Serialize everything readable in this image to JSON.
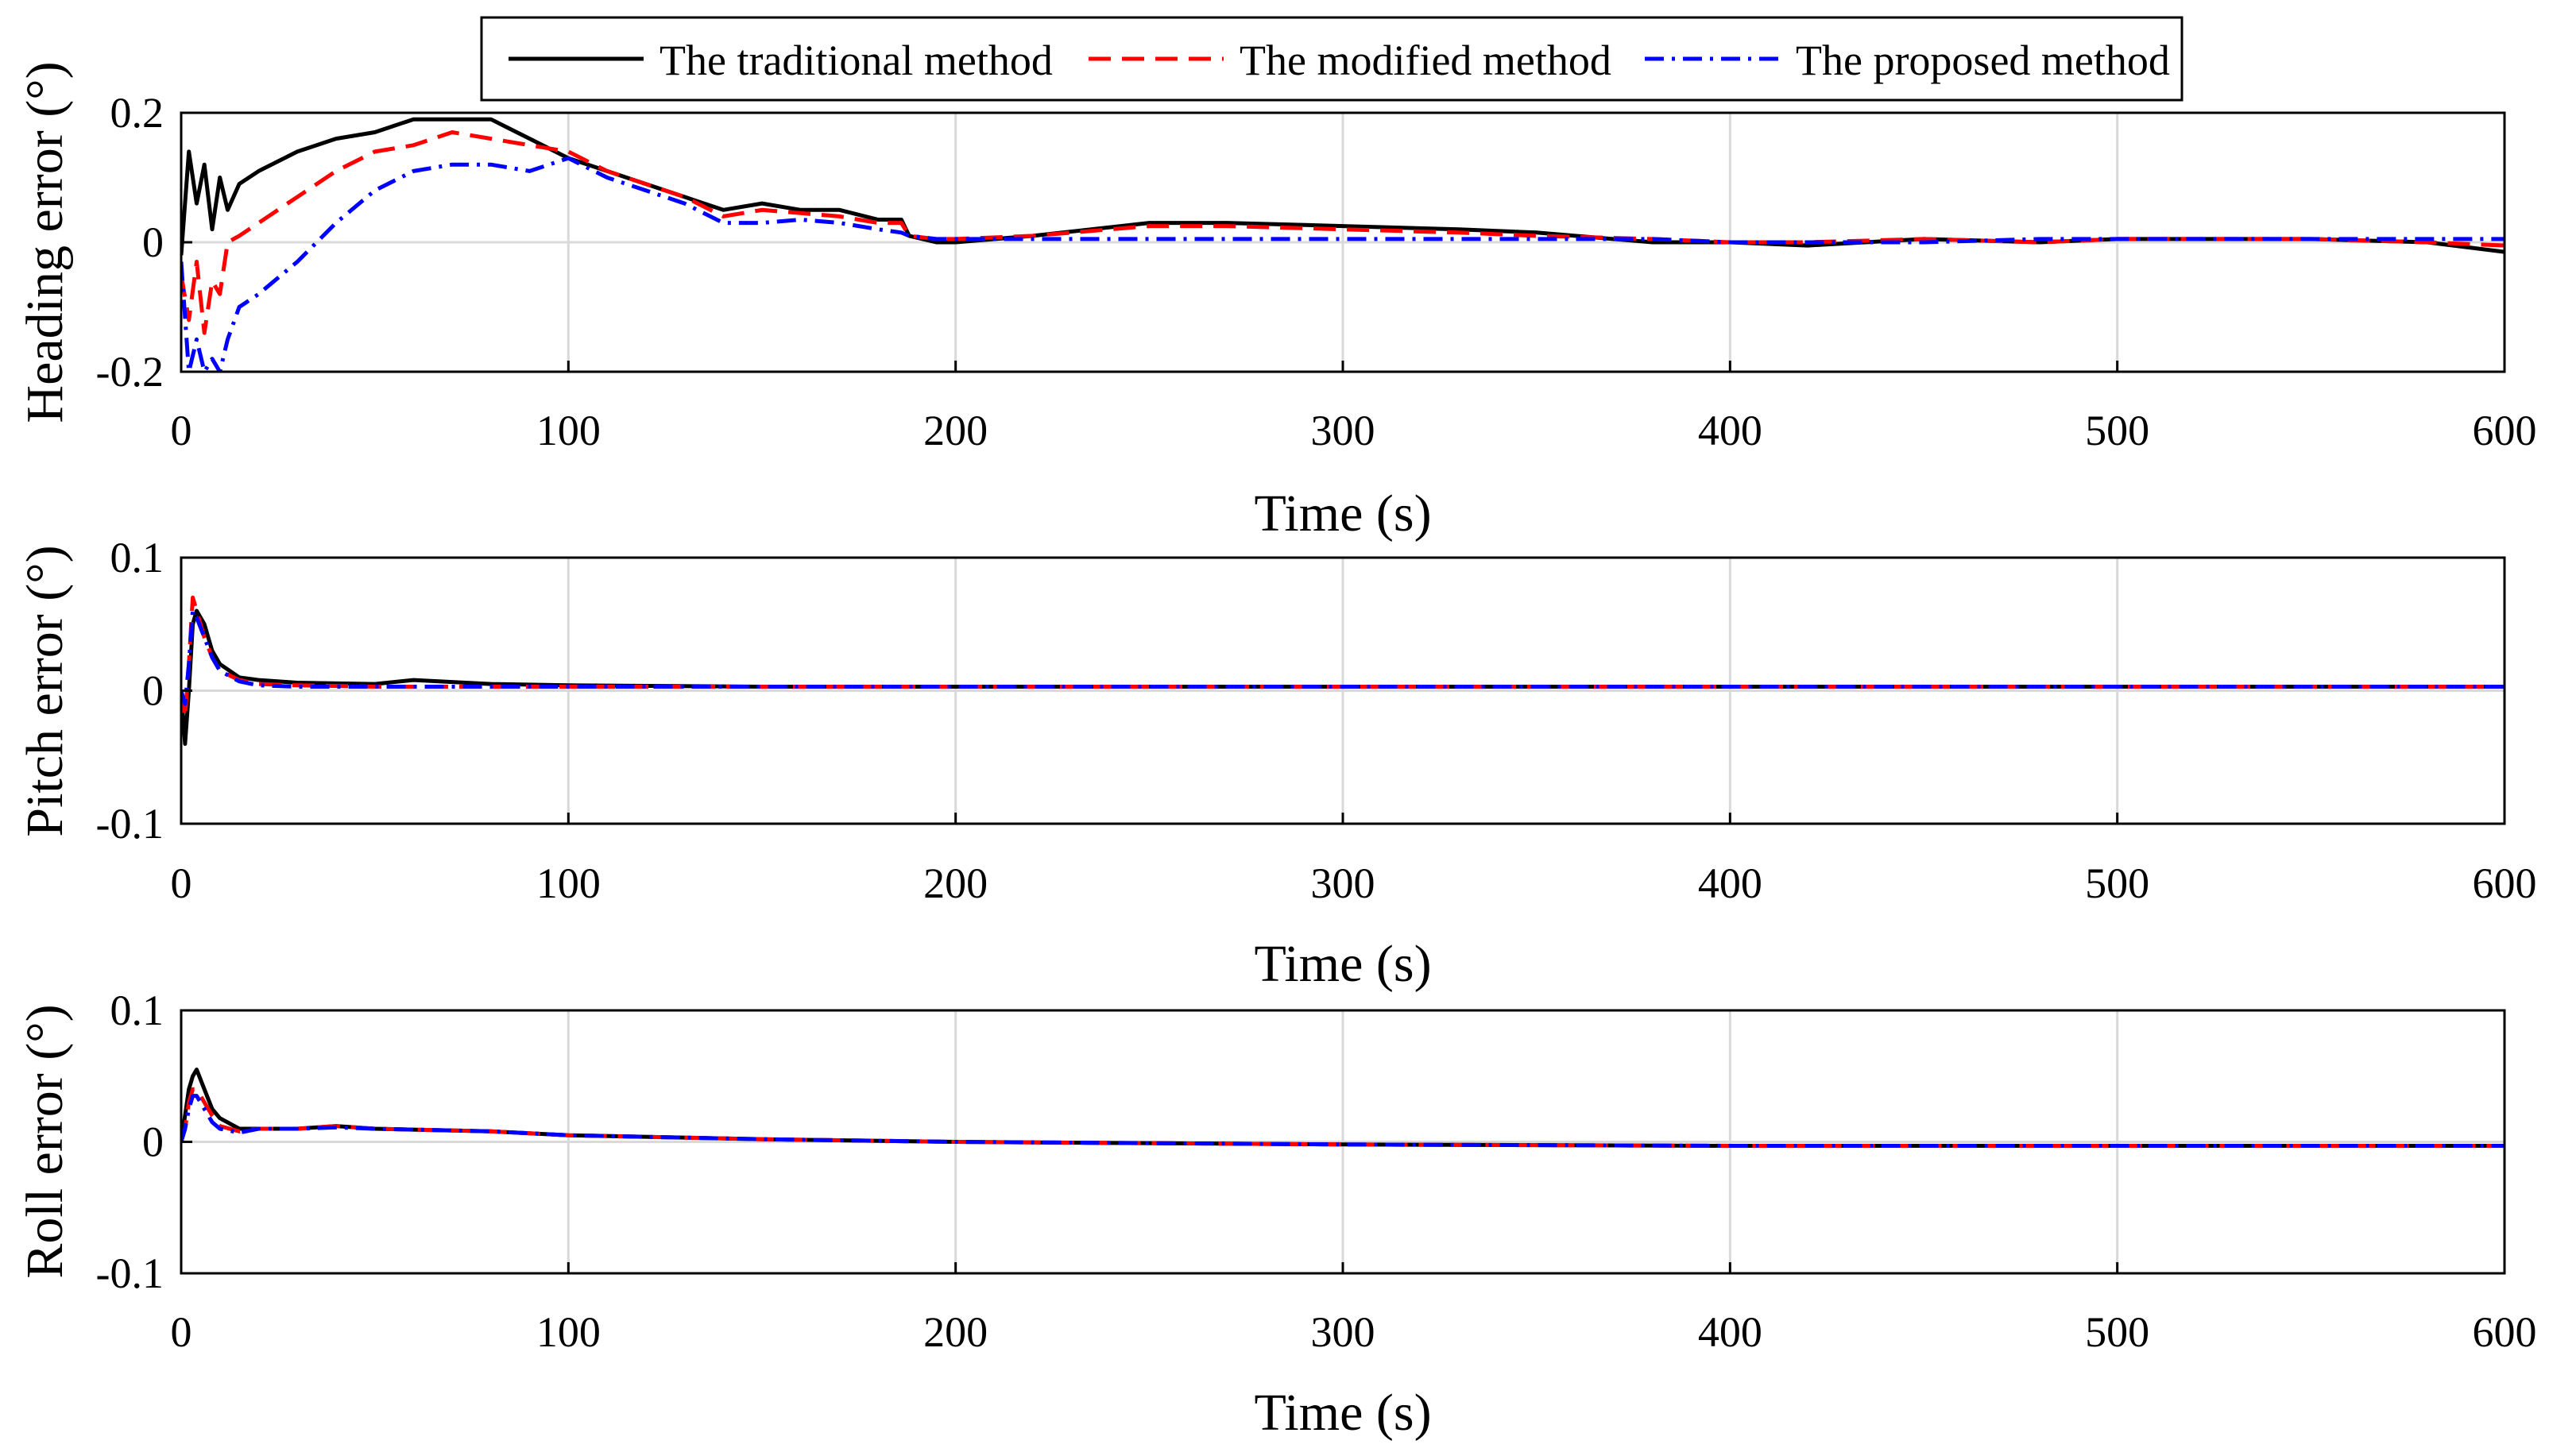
{
  "figure": {
    "legend": {
      "entries": [
        {
          "label": "The traditional method",
          "color": "#000000",
          "style": "solid"
        },
        {
          "label": "The modified method",
          "color": "#ff0000",
          "style": "dashed"
        },
        {
          "label": "The proposed method",
          "color": "#0000ff",
          "style": "dashdot"
        }
      ],
      "placement": "top-center"
    }
  },
  "chart_data": [
    {
      "type": "line",
      "title": "",
      "xlabel": "Time (s)",
      "ylabel": "Heading error (°)",
      "xlim": [
        0,
        600
      ],
      "ylim": [
        -0.2,
        0.2
      ],
      "xticks": [
        0,
        100,
        200,
        300,
        400,
        500,
        600
      ],
      "yticks": [
        -0.2,
        0,
        0.2
      ],
      "ytick_labels": [
        "-0.2",
        "0",
        "0.2"
      ],
      "grid": true,
      "series": [
        {
          "name": "The traditional method",
          "color": "#000000",
          "style": "solid",
          "x": [
            0,
            2,
            4,
            6,
            8,
            10,
            12,
            15,
            20,
            30,
            40,
            50,
            60,
            70,
            80,
            90,
            100,
            110,
            120,
            130,
            140,
            150,
            160,
            170,
            180,
            186,
            188,
            195,
            200,
            220,
            250,
            270,
            300,
            330,
            350,
            380,
            400,
            420,
            450,
            480,
            500,
            520,
            550,
            580,
            600
          ],
          "y": [
            -0.02,
            0.14,
            0.06,
            0.12,
            0.02,
            0.1,
            0.05,
            0.09,
            0.11,
            0.14,
            0.16,
            0.17,
            0.19,
            0.19,
            0.19,
            0.16,
            0.13,
            0.11,
            0.09,
            0.07,
            0.05,
            0.06,
            0.05,
            0.05,
            0.035,
            0.035,
            0.01,
            0.0,
            0.0,
            0.01,
            0.03,
            0.03,
            0.025,
            0.02,
            0.015,
            0.0,
            0.0,
            -0.005,
            0.005,
            0.0,
            0.005,
            0.005,
            0.005,
            0.0,
            -0.015
          ]
        },
        {
          "name": "The modified method",
          "color": "#ff0000",
          "style": "dashed",
          "x": [
            0,
            2,
            4,
            6,
            8,
            10,
            12,
            15,
            20,
            30,
            40,
            50,
            60,
            70,
            80,
            90,
            100,
            110,
            120,
            130,
            140,
            150,
            160,
            170,
            180,
            186,
            188,
            195,
            200,
            220,
            250,
            270,
            300,
            330,
            350,
            380,
            400,
            420,
            450,
            480,
            500,
            520,
            550,
            580,
            600
          ],
          "y": [
            -0.05,
            -0.12,
            -0.03,
            -0.14,
            -0.06,
            -0.08,
            0.0,
            0.01,
            0.03,
            0.07,
            0.11,
            0.14,
            0.15,
            0.17,
            0.16,
            0.15,
            0.14,
            0.11,
            0.09,
            0.07,
            0.04,
            0.05,
            0.045,
            0.04,
            0.03,
            0.03,
            0.01,
            0.005,
            0.005,
            0.01,
            0.025,
            0.025,
            0.02,
            0.015,
            0.01,
            0.005,
            0.0,
            0.0,
            0.005,
            0.0,
            0.005,
            0.005,
            0.005,
            0.0,
            -0.005
          ]
        },
        {
          "name": "The proposed method",
          "color": "#0000ff",
          "style": "dashdot",
          "x": [
            0,
            2,
            4,
            6,
            8,
            10,
            12,
            15,
            20,
            30,
            40,
            50,
            60,
            70,
            80,
            90,
            100,
            110,
            120,
            130,
            140,
            150,
            160,
            170,
            180,
            186,
            188,
            195,
            200,
            220,
            250,
            270,
            300,
            330,
            350,
            380,
            400,
            420,
            450,
            480,
            500,
            520,
            550,
            580,
            600
          ],
          "y": [
            -0.03,
            -0.2,
            -0.15,
            -0.2,
            -0.18,
            -0.2,
            -0.15,
            -0.1,
            -0.08,
            -0.03,
            0.03,
            0.08,
            0.11,
            0.12,
            0.12,
            0.11,
            0.13,
            0.1,
            0.08,
            0.06,
            0.03,
            0.03,
            0.035,
            0.03,
            0.02,
            0.015,
            0.01,
            0.005,
            0.005,
            0.005,
            0.005,
            0.005,
            0.005,
            0.005,
            0.005,
            0.005,
            0.0,
            0.0,
            0.0,
            0.005,
            0.005,
            0.005,
            0.005,
            0.005,
            0.005
          ]
        }
      ]
    },
    {
      "type": "line",
      "title": "",
      "xlabel": "Time (s)",
      "ylabel": "Pitch error (°)",
      "xlim": [
        0,
        600
      ],
      "ylim": [
        -0.1,
        0.1
      ],
      "xticks": [
        0,
        100,
        200,
        300,
        400,
        500,
        600
      ],
      "yticks": [
        -0.1,
        0,
        0.1
      ],
      "ytick_labels": [
        "-0.1",
        "0",
        "0.1"
      ],
      "grid": true,
      "series": [
        {
          "name": "The traditional method",
          "color": "#000000",
          "style": "solid",
          "x": [
            0,
            1,
            2,
            3,
            4,
            6,
            8,
            10,
            15,
            20,
            30,
            50,
            60,
            80,
            100,
            150,
            200,
            300,
            400,
            500,
            600
          ],
          "y": [
            0.0,
            -0.04,
            0.0,
            0.05,
            0.06,
            0.05,
            0.03,
            0.02,
            0.01,
            0.008,
            0.006,
            0.005,
            0.008,
            0.005,
            0.004,
            0.003,
            0.003,
            0.003,
            0.003,
            0.003,
            0.003
          ]
        },
        {
          "name": "The modified method",
          "color": "#ff0000",
          "style": "dashed",
          "x": [
            0,
            1,
            2,
            3,
            4,
            6,
            8,
            10,
            15,
            20,
            30,
            50,
            100,
            200,
            300,
            400,
            500,
            600
          ],
          "y": [
            0.0,
            -0.02,
            0.02,
            0.07,
            0.06,
            0.04,
            0.025,
            0.015,
            0.008,
            0.005,
            0.004,
            0.003,
            0.003,
            0.003,
            0.003,
            0.003,
            0.003,
            0.003
          ]
        },
        {
          "name": "The proposed method",
          "color": "#0000ff",
          "style": "dashdot",
          "x": [
            0,
            1,
            2,
            3,
            4,
            6,
            8,
            10,
            15,
            20,
            30,
            50,
            100,
            200,
            300,
            400,
            500,
            600
          ],
          "y": [
            0.0,
            -0.01,
            0.02,
            0.06,
            0.055,
            0.04,
            0.025,
            0.015,
            0.007,
            0.004,
            0.003,
            0.003,
            0.003,
            0.003,
            0.003,
            0.003,
            0.003,
            0.003
          ]
        }
      ]
    },
    {
      "type": "line",
      "title": "",
      "xlabel": "Time (s)",
      "ylabel": "Roll error (°)",
      "xlim": [
        0,
        600
      ],
      "ylim": [
        -0.1,
        0.1
      ],
      "xticks": [
        0,
        100,
        200,
        300,
        400,
        500,
        600
      ],
      "yticks": [
        -0.1,
        0,
        0.1
      ],
      "ytick_labels": [
        "-0.1",
        "0",
        "0.1"
      ],
      "grid": true,
      "series": [
        {
          "name": "The traditional method",
          "color": "#000000",
          "style": "solid",
          "x": [
            0,
            1,
            2,
            3,
            4,
            6,
            8,
            10,
            15,
            20,
            30,
            40,
            50,
            80,
            100,
            150,
            200,
            300,
            400,
            500,
            600
          ],
          "y": [
            0.0,
            0.02,
            0.04,
            0.05,
            0.055,
            0.04,
            0.025,
            0.018,
            0.01,
            0.01,
            0.01,
            0.012,
            0.01,
            0.008,
            0.005,
            0.002,
            0.0,
            -0.002,
            -0.003,
            -0.003,
            -0.003
          ]
        },
        {
          "name": "The modified method",
          "color": "#ff0000",
          "style": "dashed",
          "x": [
            0,
            1,
            2,
            3,
            4,
            6,
            8,
            10,
            15,
            20,
            30,
            40,
            50,
            80,
            100,
            150,
            200,
            300,
            400,
            500,
            600
          ],
          "y": [
            0.0,
            0.01,
            0.03,
            0.04,
            0.04,
            0.03,
            0.02,
            0.012,
            0.008,
            0.01,
            0.01,
            0.012,
            0.01,
            0.008,
            0.005,
            0.002,
            0.0,
            -0.002,
            -0.003,
            -0.003,
            -0.003
          ]
        },
        {
          "name": "The proposed method",
          "color": "#0000ff",
          "style": "dashdot",
          "x": [
            0,
            1,
            2,
            3,
            4,
            6,
            8,
            10,
            15,
            20,
            30,
            40,
            50,
            80,
            100,
            150,
            200,
            300,
            400,
            500,
            600
          ],
          "y": [
            0.0,
            0.01,
            0.025,
            0.035,
            0.035,
            0.025,
            0.015,
            0.01,
            0.007,
            0.01,
            0.01,
            0.011,
            0.01,
            0.008,
            0.005,
            0.002,
            0.0,
            -0.002,
            -0.003,
            -0.003,
            -0.003
          ]
        }
      ]
    }
  ]
}
